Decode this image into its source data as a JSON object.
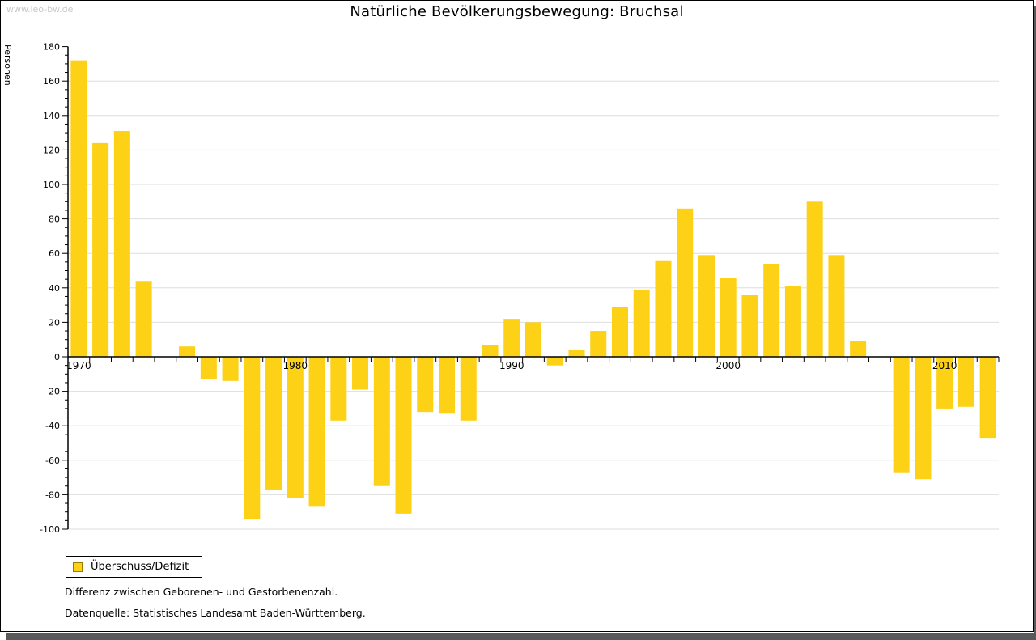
{
  "window": {
    "watermark": "www.leo-bw.de"
  },
  "title": "Natürliche Bevölkerungsbewegung: Bruchsal",
  "legend": {
    "label": "Überschuss/Defizit"
  },
  "footnotes": [
    "Differenz zwischen Geborenen- und Gestorbenenzahl.",
    "Datenquelle: Statistisches Landesamt Baden-Württemberg."
  ],
  "colors": {
    "bar": "#FCD116",
    "bar_border": "#9C7A00",
    "grid": "#DEDEDE",
    "axis": "#000000",
    "watermark": "#C8C8C8",
    "shadow": "#59595B"
  },
  "chart_data": {
    "type": "bar",
    "title": "Natürliche Bevölkerungsbewegung: Bruchsal",
    "xlabel": "",
    "ylabel": "Personen",
    "ylim": [
      -100,
      180
    ],
    "ytick_step": 20,
    "yminor_step": 5,
    "grid": true,
    "legend_position": "bottom-left",
    "series_name": "Überschuss/Defizit",
    "x": [
      1970,
      1971,
      1972,
      1973,
      1974,
      1975,
      1976,
      1977,
      1978,
      1979,
      1980,
      1981,
      1982,
      1983,
      1984,
      1985,
      1986,
      1987,
      1988,
      1989,
      1990,
      1991,
      1992,
      1993,
      1994,
      1995,
      1996,
      1997,
      1998,
      1999,
      2000,
      2001,
      2002,
      2003,
      2004,
      2005,
      2006,
      2007,
      2008,
      2009,
      2010,
      2011,
      2012
    ],
    "values": [
      172,
      124,
      131,
      44,
      0,
      6,
      -13,
      -14,
      -94,
      -77,
      -82,
      -87,
      -37,
      -19,
      -75,
      -91,
      -32,
      -33,
      -37,
      7,
      22,
      20,
      -5,
      4,
      15,
      29,
      39,
      56,
      86,
      59,
      46,
      36,
      54,
      41,
      90,
      59,
      9,
      0,
      -67,
      -71,
      -30,
      -29,
      -47
    ],
    "ytick_labels": [
      180,
      160,
      140,
      120,
      100,
      80,
      60,
      40,
      20,
      0,
      -20,
      -40,
      -60,
      -80,
      -100
    ],
    "xtick_labels": [
      1970,
      1980,
      1990,
      2000,
      2010
    ]
  }
}
